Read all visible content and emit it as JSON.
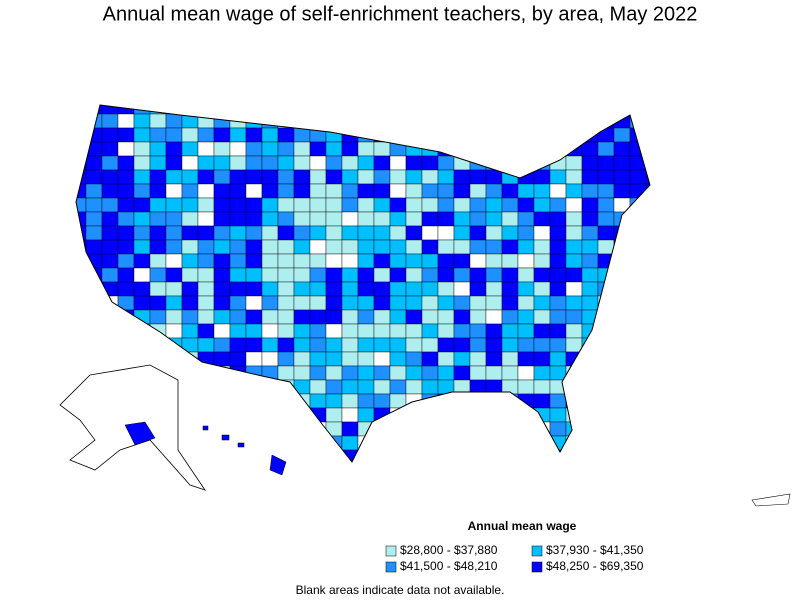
{
  "title": "Annual mean wage of self-enrichment teachers, by area, May 2022",
  "legend": {
    "title": "Annual mean wage",
    "items": [
      {
        "label": "$28,800 - $37,880",
        "color": "#aeeeee"
      },
      {
        "label": "$37,930 - $41,350",
        "color": "#00bfff"
      },
      {
        "label": "$41,500 - $48,210",
        "color": "#1e90ff"
      },
      {
        "label": "$48,250 - $69,350",
        "color": "#0000ff"
      }
    ]
  },
  "footnote": "Blank areas indicate data not available."
}
